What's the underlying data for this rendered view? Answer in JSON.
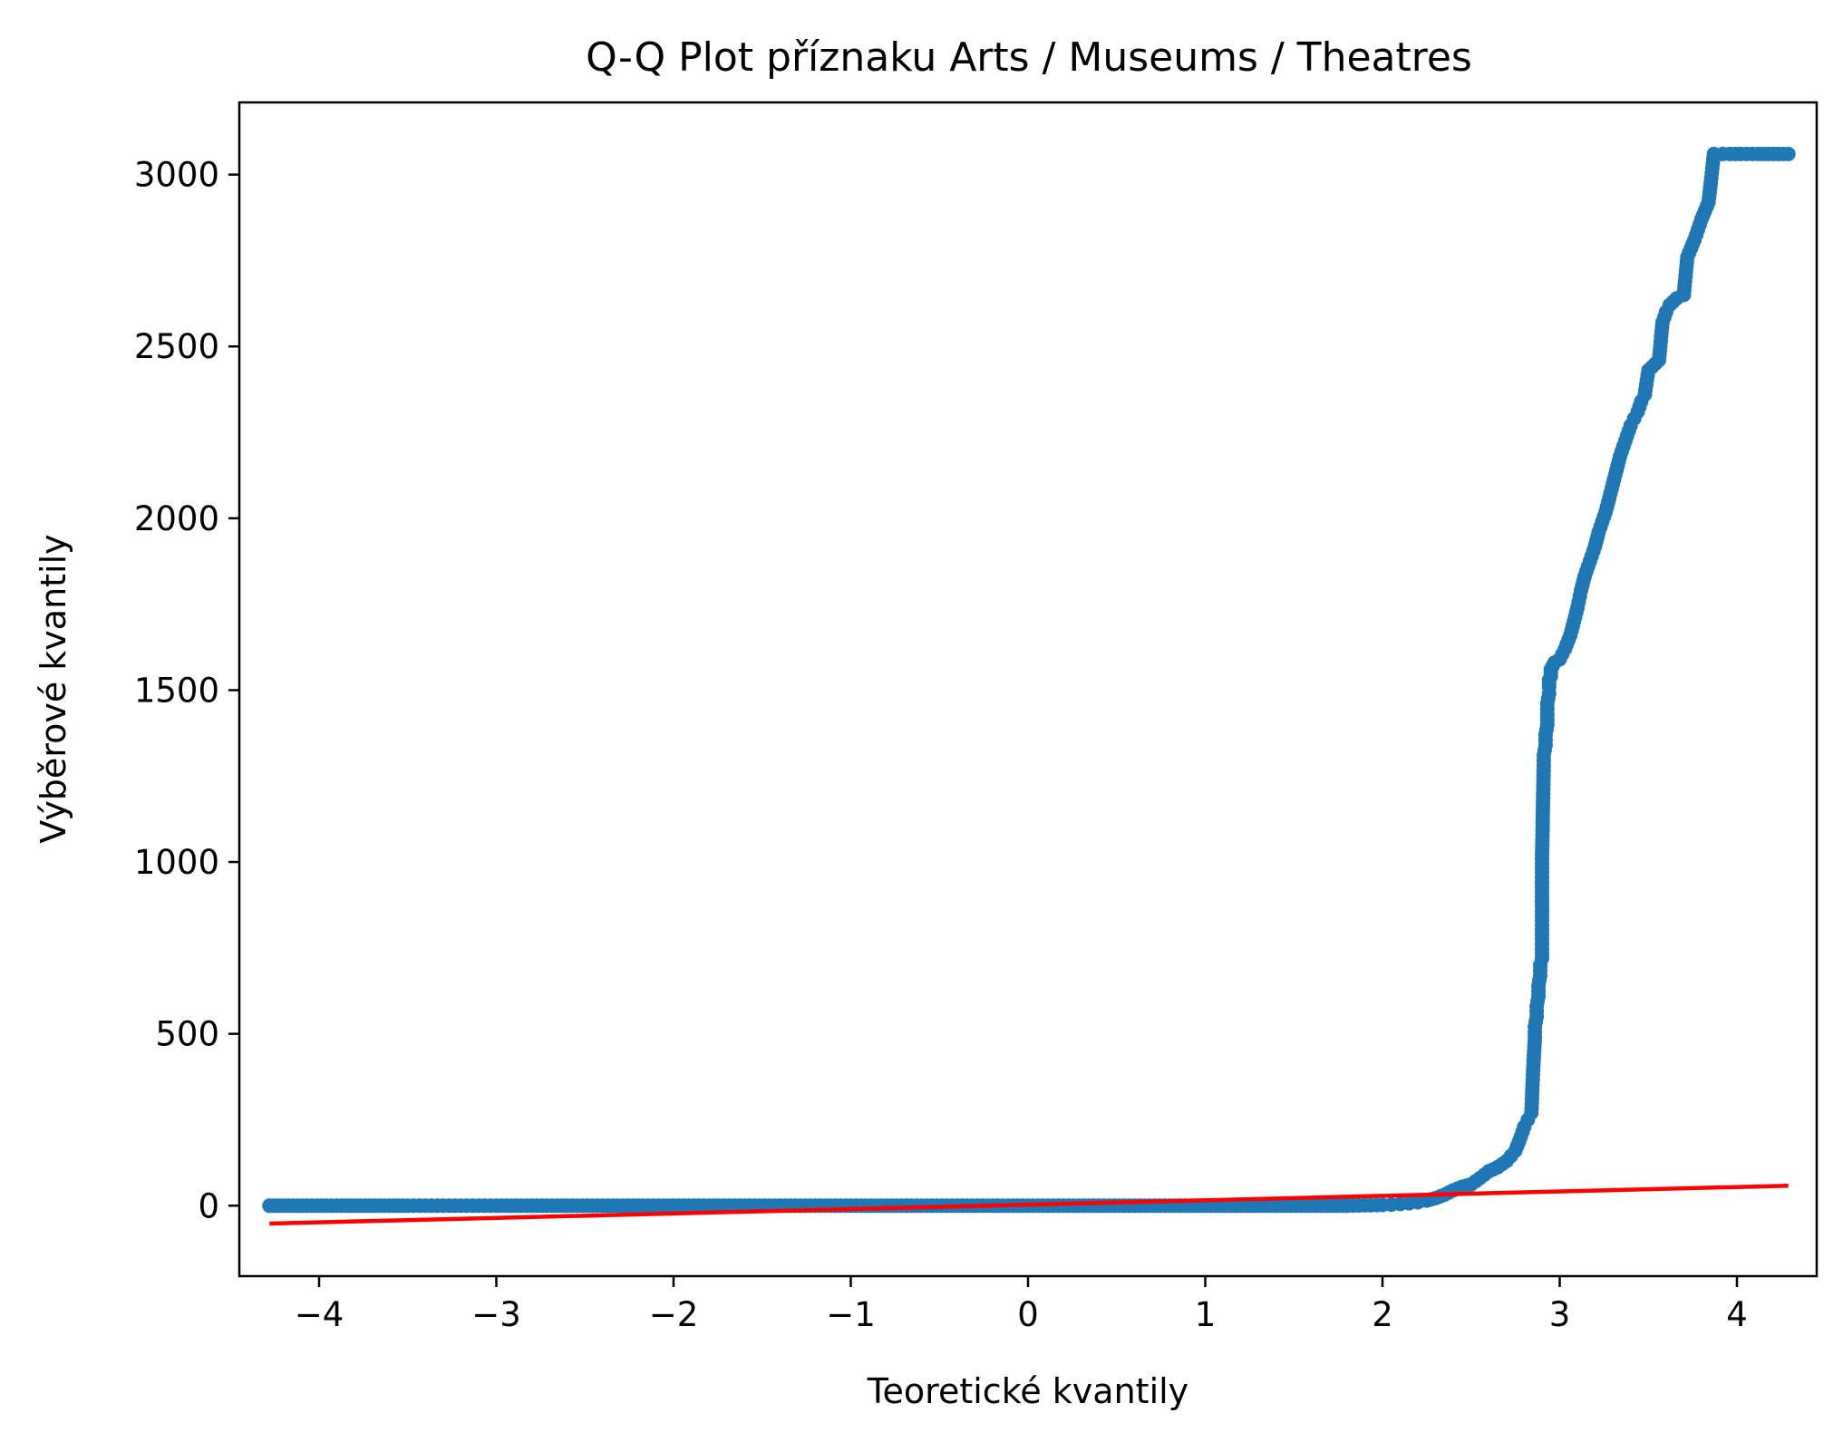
{
  "chart_data": {
    "type": "scatter",
    "title": "Q-Q Plot příznaku Arts / Museums / Theatres",
    "xlabel": "Teoretické kvantily",
    "ylabel": "Výběrové kvantily",
    "xlim": [
      -4.45,
      4.45
    ],
    "ylim": [
      -205,
      3210
    ],
    "xticks": [
      -4,
      -3,
      -2,
      -1,
      0,
      1,
      2,
      3,
      4
    ],
    "xtick_labels": [
      "−4",
      "−3",
      "−2",
      "−1",
      "0",
      "1",
      "2",
      "3",
      "4"
    ],
    "yticks": [
      0,
      500,
      1000,
      1500,
      2000,
      2500,
      3000
    ],
    "ytick_labels": [
      "0",
      "500",
      "1000",
      "1500",
      "2000",
      "2500",
      "3000"
    ],
    "grid": false,
    "colors": {
      "points": "#1f77b4",
      "fit_line": "#ff0000"
    },
    "series": [
      {
        "kind": "points",
        "x": [
          -4.28,
          -4.12,
          -4.04,
          -3.96,
          -3.9,
          -3.82,
          -3.74,
          -3.66,
          -3.58,
          -3.5,
          -3.4,
          -3.3,
          -3.2,
          -3.1,
          -3.0,
          -2.8,
          -2.6,
          -2.4,
          -2.2,
          -2.0,
          -1.8,
          -1.6,
          -1.4,
          -1.2,
          -1.0,
          -0.8,
          -0.6,
          -0.4,
          -0.2,
          0.0,
          0.2,
          0.4,
          0.6,
          0.8,
          1.0,
          1.2,
          1.4,
          1.6,
          1.8,
          1.9,
          2.0,
          2.05,
          2.1,
          2.15,
          2.2,
          2.25,
          2.3,
          2.35,
          2.4,
          2.45,
          2.5,
          2.55,
          2.6,
          2.65,
          2.7,
          2.75,
          2.78,
          2.8,
          2.82,
          2.84,
          2.85,
          2.86,
          2.86,
          2.87,
          2.87,
          2.88,
          2.88,
          2.89,
          2.89,
          2.9,
          2.9,
          2.91,
          2.91,
          2.92,
          2.92,
          2.93,
          2.93,
          2.93,
          2.94,
          2.94,
          2.94,
          2.94,
          2.95,
          2.95,
          2.95,
          2.96,
          2.97,
          3.0,
          3.03,
          3.06,
          3.08,
          3.1,
          3.12,
          3.14,
          3.16,
          3.18,
          3.2,
          3.22,
          3.24,
          3.26,
          3.28,
          3.3,
          3.32,
          3.34,
          3.36,
          3.38,
          3.4,
          3.42,
          3.44,
          3.46,
          3.48,
          3.5,
          3.52,
          3.54,
          3.56,
          3.58,
          3.6,
          3.62,
          3.64,
          3.66,
          3.7,
          3.72,
          3.76,
          3.8,
          3.84,
          3.87,
          3.92,
          3.96,
          4.02,
          4.12,
          4.29
        ],
        "y": [
          0,
          0,
          0,
          0,
          0,
          0,
          0,
          0,
          0,
          0,
          0,
          0,
          0,
          0,
          0,
          0,
          0,
          0,
          0,
          0,
          0,
          0,
          0,
          0,
          0,
          0,
          0,
          0,
          0,
          0,
          0,
          0,
          0,
          0,
          0,
          0,
          0,
          0,
          0,
          1,
          2,
          3,
          5,
          7,
          10,
          15,
          22,
          32,
          45,
          55,
          62,
          80,
          100,
          112,
          130,
          160,
          200,
          230,
          250,
          270,
          395,
          490,
          520,
          550,
          580,
          610,
          640,
          670,
          700,
          720,
          1010,
          1280,
          1310,
          1340,
          1370,
          1400,
          1430,
          1460,
          1490,
          1510,
          1520,
          1530,
          1540,
          1550,
          1560,
          1570,
          1580,
          1590,
          1620,
          1660,
          1700,
          1740,
          1790,
          1830,
          1860,
          1890,
          1920,
          1960,
          1990,
          2020,
          2060,
          2100,
          2140,
          2180,
          2210,
          2240,
          2270,
          2290,
          2310,
          2340,
          2360,
          2430,
          2440,
          2450,
          2460,
          2570,
          2600,
          2620,
          2630,
          2640,
          2650,
          2760,
          2810,
          2870,
          2920,
          3060,
          3060,
          3060,
          3060,
          3060,
          3060
        ]
      },
      {
        "kind": "line",
        "x": [
          -4.28,
          4.29
        ],
        "y": [
          -52,
          58
        ]
      }
    ]
  }
}
